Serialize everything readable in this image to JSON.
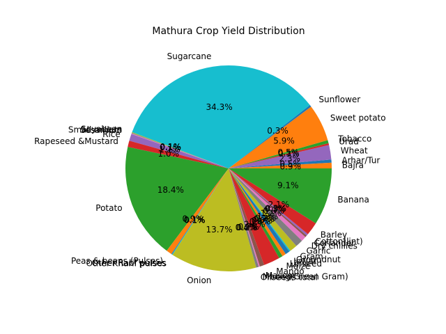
{
  "chart_data": {
    "type": "pie",
    "title": "Mathura Crop Yield Distribution",
    "start_angle_deg": 0,
    "direction": "counterclockwise",
    "slices": [
      {
        "label": "Bajra",
        "value": 0.9,
        "pct": "0.9%",
        "color": "#ff7f0e"
      },
      {
        "label": "Arhar/Tur",
        "value": 0.5,
        "pct": "0.5%",
        "color": "#1f77b4"
      },
      {
        "label": "Wheat",
        "value": 2.3,
        "pct": "2.3%",
        "color": "#9467bd"
      },
      {
        "label": "Urad",
        "value": 0.3,
        "pct": "0.3%",
        "color": "#d62728"
      },
      {
        "label": "Tobacco",
        "value": 0.5,
        "pct": "0.5%",
        "color": "#2ca02c"
      },
      {
        "label": "Sweet potato",
        "value": 5.9,
        "pct": "5.9%",
        "color": "#ff7f0e"
      },
      {
        "label": "Sunflower",
        "value": 0.3,
        "pct": "0.3%",
        "color": "#1f77b4"
      },
      {
        "label": "Sugarcane",
        "value": 34.3,
        "pct": "34.3%",
        "color": "#17becf"
      },
      {
        "label": "Soyabean",
        "value": 0.1,
        "pct": "0.1%",
        "color": "#bcbd22"
      },
      {
        "label": "Small millets",
        "value": 0.1,
        "pct": "0.1%",
        "color": "#7f7f7f"
      },
      {
        "label": "Sesamum",
        "value": 0.1,
        "pct": "0.1%",
        "color": "#e377c2"
      },
      {
        "label": "Rice",
        "value": 1.1,
        "pct": "1.1%",
        "color": "#9467bd"
      },
      {
        "label": "Rapeseed &Mustard",
        "value": 1.0,
        "pct": "1.0%",
        "color": "#d62728"
      },
      {
        "label": "Potato",
        "value": 18.4,
        "pct": "18.4%",
        "color": "#2ca02c"
      },
      {
        "label": "Peas & beans (Pulses)",
        "value": 0.9,
        "pct": "0.9%",
        "color": "#ff7f0e"
      },
      {
        "label": "Other Rabi pulses",
        "value": 0.1,
        "pct": "0.1%",
        "color": "#1f77b4"
      },
      {
        "label": "Other Kharif pulses",
        "value": 0.1,
        "pct": "0.1%",
        "color": "#17becf"
      },
      {
        "label": "Onion",
        "value": 13.7,
        "pct": "13.7%",
        "color": "#bcbd22"
      },
      {
        "label": "Oilseeds total",
        "value": 0.4,
        "pct": "0.4%",
        "color": "#7f7f7f"
      },
      {
        "label": "Moong(Green Gram)",
        "value": 0.2,
        "pct": "0.2%",
        "color": "#e377c2"
      },
      {
        "label": "Masoor",
        "value": 0.7,
        "pct": "0.7%",
        "color": "#8c564b"
      },
      {
        "label": "Mango",
        "value": 2.6,
        "pct": "2.6%",
        "color": "#d62728"
      },
      {
        "label": "Maize",
        "value": 0.6,
        "pct": "0.6%",
        "color": "#2ca02c"
      },
      {
        "label": "Linseed",
        "value": 0.6,
        "pct": "0.6%",
        "color": "#ff7f0e"
      },
      {
        "label": "Jowar",
        "value": 0.7,
        "pct": "0.7%",
        "color": "#1f77b4"
      },
      {
        "label": "Groundnut",
        "value": 0.2,
        "pct": "0.2%",
        "color": "#17becf"
      },
      {
        "label": "Gram",
        "value": 1.2,
        "pct": "1.2%",
        "color": "#bcbd22"
      },
      {
        "label": "Garlic",
        "value": 1.2,
        "pct": "1.2%",
        "color": "#7f7f7f"
      },
      {
        "label": "Dry chillies",
        "value": 0.8,
        "pct": "0.8%",
        "color": "#e377c2"
      },
      {
        "label": "Coriander",
        "value": 0.3,
        "pct": "0.3%",
        "color": "#8c564b"
      },
      {
        "label": "Cotton(lint)",
        "value": 0.3,
        "pct": "0.3%",
        "color": "#9467bd"
      },
      {
        "label": "Barley",
        "value": 2.1,
        "pct": "2.1%",
        "color": "#d62728"
      },
      {
        "label": "Banana",
        "value": 9.1,
        "pct": "9.1%",
        "color": "#2ca02c"
      }
    ]
  }
}
